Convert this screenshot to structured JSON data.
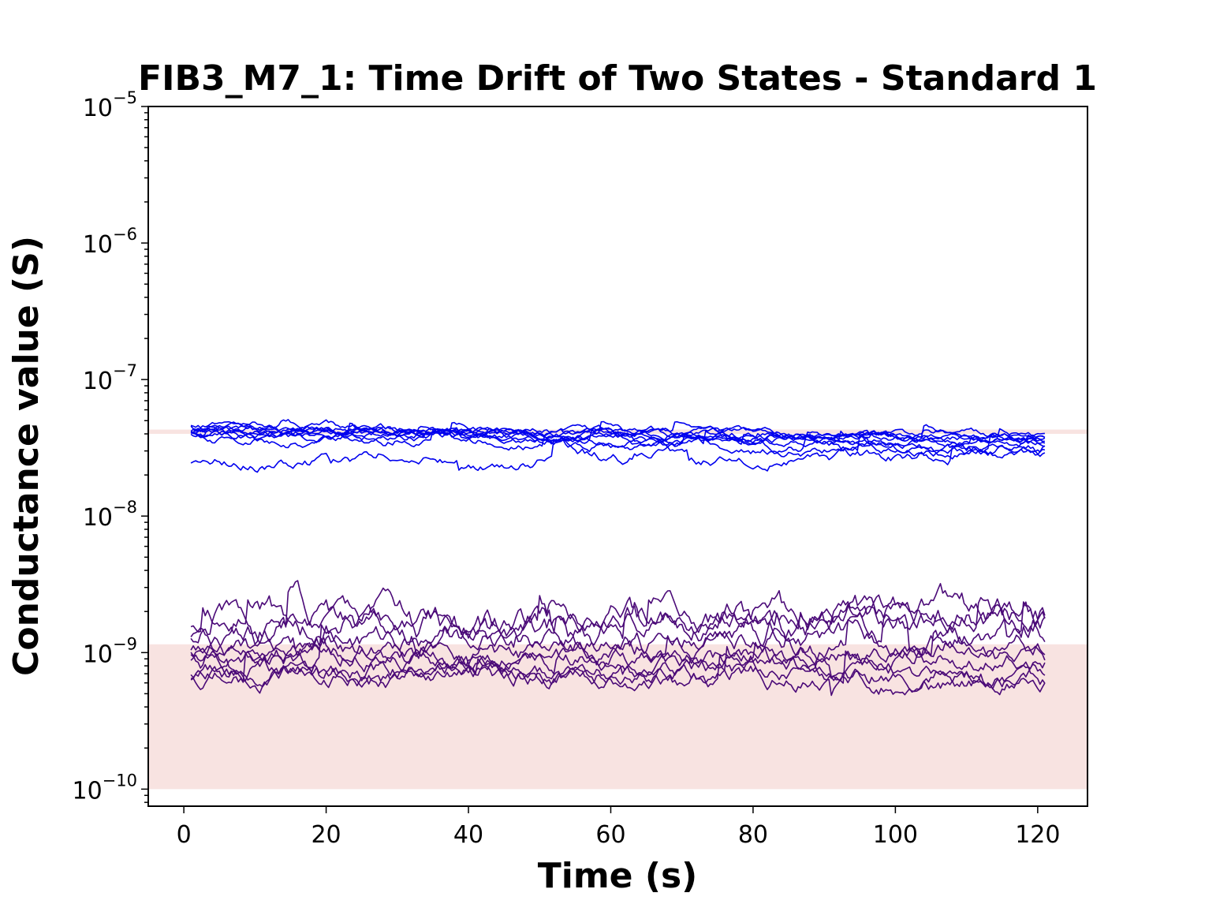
{
  "chart_data": {
    "type": "line",
    "title": "FIB3_M7_1: Time Drift of Two States - Standard 1",
    "xlabel": "Time (s)",
    "ylabel": "Conductance value (S)",
    "xlim": [
      -5,
      127
    ],
    "ylim": [
      7.5e-11,
      1e-05
    ],
    "yscale": "log",
    "x_ticks": [
      0,
      20,
      40,
      60,
      80,
      100,
      120
    ],
    "y_ticks": [
      {
        "base": "10",
        "exp": "−10",
        "value": 1e-10
      },
      {
        "base": "10",
        "exp": "−9",
        "value": 1e-09
      },
      {
        "base": "10",
        "exp": "−8",
        "value": 1e-08
      },
      {
        "base": "10",
        "exp": "−7",
        "value": 1e-07
      },
      {
        "base": "10",
        "exp": "−6",
        "value": 1e-06
      },
      {
        "base": "10",
        "exp": "−5",
        "value": 1e-05
      }
    ],
    "grid": false,
    "bands": [
      {
        "y0": 4e-08,
        "y1": 4.3e-08,
        "color": "#f8e3e1"
      },
      {
        "y0": 1e-10,
        "y1": 1.15e-09,
        "color": "#f8e3e1"
      }
    ],
    "state_colors": {
      "high": "#0000ee",
      "low": "#4b0a78"
    },
    "x_range": [
      1,
      121
    ],
    "high_state_series": [
      {
        "base": 4.3e-08,
        "drift": -0.06,
        "noise": 0.03
      },
      {
        "base": 4.2e-08,
        "drift": -0.04,
        "noise": 0.03
      },
      {
        "base": 4.4e-08,
        "drift": -0.1,
        "noise": 0.035
      },
      {
        "base": 4e-08,
        "drift": -0.02,
        "noise": 0.03
      },
      {
        "base": 4.1e-08,
        "drift": -0.15,
        "noise": 0.04
      },
      {
        "base": 4.5e-08,
        "drift": -0.12,
        "noise": 0.035
      },
      {
        "base": 3.9e-08,
        "drift": -0.09,
        "noise": 0.035
      },
      {
        "base": 4.2e-08,
        "drift": -0.05,
        "noise": 0.03
      },
      {
        "base": 3.8e-08,
        "drift": -0.13,
        "noise": 0.04
      },
      {
        "base": 2.45e-08,
        "drift": 0.07,
        "noise": 0.05
      }
    ],
    "low_state_series": [
      {
        "base": 1.5e-09,
        "drift": 0.1,
        "noise": 0.1
      },
      {
        "base": 1.4e-09,
        "drift": 0.12,
        "noise": 0.12
      },
      {
        "base": 1.1e-09,
        "drift": 0.05,
        "noise": 0.1
      },
      {
        "base": 1e-09,
        "drift": 0.08,
        "noise": 0.1
      },
      {
        "base": 9e-10,
        "drift": 0.0,
        "noise": 0.08
      },
      {
        "base": 8.5e-10,
        "drift": 0.02,
        "noise": 0.08
      },
      {
        "base": 7.5e-10,
        "drift": -0.05,
        "noise": 0.08
      },
      {
        "base": 7e-10,
        "drift": 0.0,
        "noise": 0.08
      },
      {
        "base": 6.5e-10,
        "drift": -0.03,
        "noise": 0.08
      },
      {
        "base": 1.3e-09,
        "drift": 0.15,
        "noise": 0.13
      }
    ]
  }
}
